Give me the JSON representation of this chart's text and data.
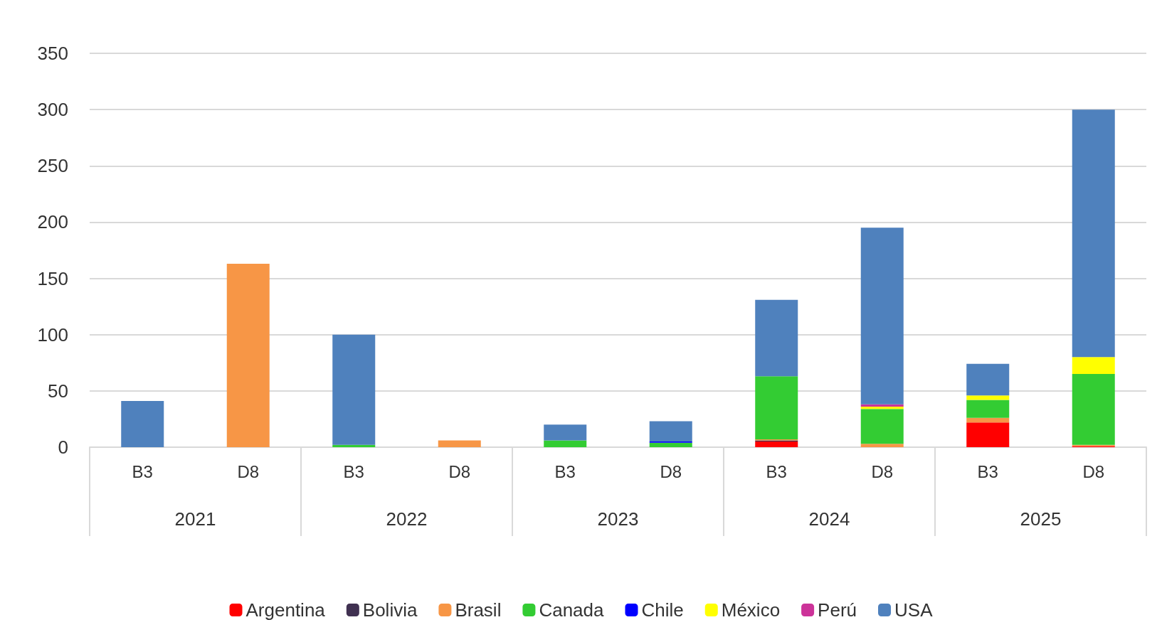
{
  "chart_data": {
    "type": "bar",
    "stacked": true,
    "categories": [
      "B3",
      "D8",
      "B3",
      "D8",
      "B3",
      "D8",
      "B3",
      "D8",
      "B3",
      "D8"
    ],
    "annotations": [
      "2021",
      "2022",
      "2023",
      "2024",
      "2025"
    ],
    "ylim": [
      0,
      350
    ],
    "yticks": [
      0,
      50,
      100,
      150,
      200,
      250,
      300,
      350
    ],
    "grid": "y",
    "legend": "bottom",
    "series": [
      {
        "name": "Argentina",
        "color": "#ff0000",
        "values": [
          0,
          0,
          0,
          0,
          0,
          0,
          5,
          0,
          22,
          1
        ]
      },
      {
        "name": "Bolivia",
        "color": "#403151",
        "values": [
          0,
          0,
          0,
          0,
          0,
          0,
          1,
          0,
          0,
          0
        ]
      },
      {
        "name": "Brasil",
        "color": "#f79646",
        "values": [
          0,
          163,
          0,
          6,
          0,
          0,
          1,
          3,
          4,
          1
        ]
      },
      {
        "name": "Canada",
        "color": "#33cc33",
        "values": [
          0,
          0,
          2,
          0,
          6,
          4,
          56,
          31,
          16,
          63
        ]
      },
      {
        "name": "Chile",
        "color": "#0000ff",
        "values": [
          0,
          0,
          0,
          0,
          0,
          1,
          0,
          0,
          0,
          0
        ]
      },
      {
        "name": "México",
        "color": "#ffff00",
        "values": [
          0,
          0,
          0,
          0,
          0,
          0,
          0,
          2,
          4,
          15
        ]
      },
      {
        "name": "Perú",
        "color": "#cc3399",
        "values": [
          0,
          0,
          0,
          0,
          0,
          0,
          0,
          2,
          0,
          0
        ]
      },
      {
        "name": "USA",
        "color": "#4f81bd",
        "values": [
          41,
          0,
          98,
          0,
          14,
          18,
          68,
          157,
          28,
          220
        ]
      }
    ]
  }
}
